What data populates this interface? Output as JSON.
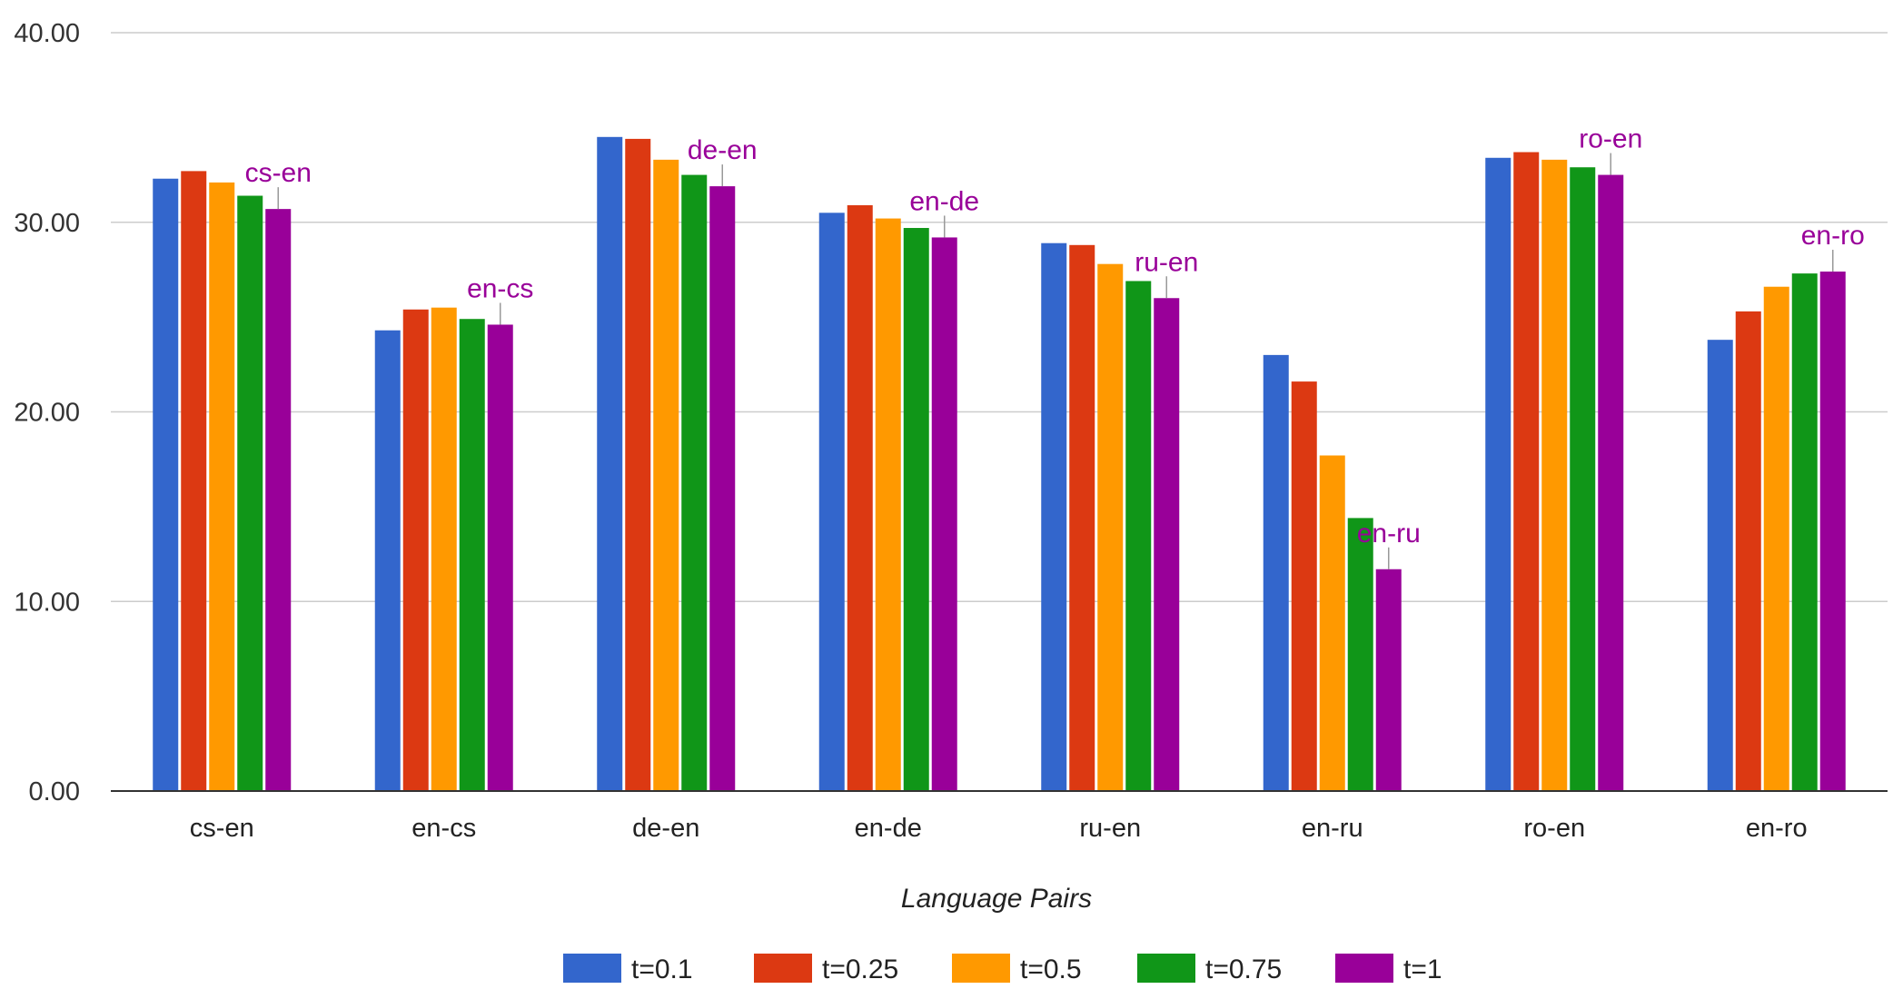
{
  "chart_data": {
    "type": "bar",
    "title": "",
    "xlabel": "Language Pairs",
    "ylabel": "",
    "ylim": [
      0,
      40
    ],
    "yticks": [
      "0.00",
      "10.00",
      "20.00",
      "30.00",
      "40.00"
    ],
    "grid": true,
    "legend_position": "bottom",
    "categories": [
      "cs-en",
      "en-cs",
      "de-en",
      "en-de",
      "ru-en",
      "en-ru",
      "ro-en",
      "en-ro"
    ],
    "series": [
      {
        "name": "t=0.1",
        "color": "#3366cc",
        "values": [
          32.3,
          24.3,
          34.5,
          30.5,
          28.9,
          23.0,
          33.4,
          23.8
        ]
      },
      {
        "name": "t=0.25",
        "color": "#dc3912",
        "values": [
          32.7,
          25.4,
          34.4,
          30.9,
          28.8,
          21.6,
          33.7,
          25.3
        ]
      },
      {
        "name": "t=0.5",
        "color": "#ff9900",
        "values": [
          32.1,
          25.5,
          33.3,
          30.2,
          27.8,
          17.7,
          33.3,
          26.6
        ]
      },
      {
        "name": "t=0.75",
        "color": "#109618",
        "values": [
          31.4,
          24.9,
          32.5,
          29.7,
          26.9,
          14.4,
          32.9,
          27.3
        ]
      },
      {
        "name": "t=1",
        "color": "#990099",
        "values": [
          30.7,
          24.6,
          31.9,
          29.2,
          26.0,
          11.7,
          32.5,
          27.4
        ]
      }
    ],
    "annotations": {
      "series": "t=1",
      "color": "#990099",
      "labels": [
        "cs-en",
        "en-cs",
        "de-en",
        "en-de",
        "ru-en",
        "en-ru",
        "ro-en",
        "en-ro"
      ]
    }
  }
}
